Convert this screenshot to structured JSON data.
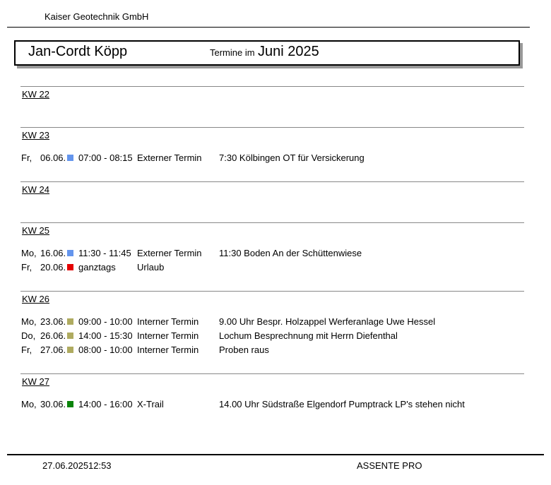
{
  "header": {
    "company": "Kaiser Geotechnik GmbH",
    "person": "Jan-Cordt Köpp",
    "subtitle_prefix": "Termine im",
    "month": "Juni 2025"
  },
  "footer": {
    "print_date": "27.06.2025",
    "print_time": "12:53",
    "app_name": "ASSENTE PRO"
  },
  "colors": {
    "blue": "#6495ED",
    "red": "#E40000",
    "olive": "#AFAB60",
    "green": "#0B840B"
  },
  "weeks": [
    {
      "label": "KW 22",
      "appointments": []
    },
    {
      "label": "KW 23",
      "appointments": [
        {
          "day": "Fr,",
          "date": "06.06.",
          "color": "blue",
          "time": "07:00 - 08:15",
          "category": "Externer Termin",
          "description": "7:30 Kölbingen OT für Versickerung"
        }
      ]
    },
    {
      "label": "KW 24",
      "appointments": []
    },
    {
      "label": "KW 25",
      "appointments": [
        {
          "day": "Mo,",
          "date": "16.06.",
          "color": "blue",
          "time": "11:30 - 11:45",
          "category": "Externer Termin",
          "description": "11:30 Boden An der Schüttenwiese"
        },
        {
          "day": "Fr,",
          "date": "20.06.",
          "color": "red",
          "time": "ganztags",
          "category": "Urlaub",
          "description": ""
        }
      ]
    },
    {
      "label": "KW 26",
      "appointments": [
        {
          "day": "Mo,",
          "date": "23.06.",
          "color": "olive",
          "time": "09:00 - 10:00",
          "category": "Interner Termin",
          "description": "9.00 Uhr Bespr. Holzappel Werferanlage Uwe Hessel"
        },
        {
          "day": "Do,",
          "date": "26.06.",
          "color": "olive",
          "time": "14:00 - 15:30",
          "category": "Interner Termin",
          "description": "Lochum Besprechnung mit Herrn Diefenthal"
        },
        {
          "day": "Fr,",
          "date": "27.06.",
          "color": "olive",
          "time": "08:00 - 10:00",
          "category": "Interner Termin",
          "description": "Proben raus"
        }
      ]
    },
    {
      "label": "KW 27",
      "appointments": [
        {
          "day": "Mo,",
          "date": "30.06.",
          "color": "green",
          "time": "14:00 - 16:00",
          "category": "X-Trail",
          "description": "14.00 Uhr Südstraße Elgendorf Pumptrack LP's stehen nicht"
        }
      ]
    }
  ]
}
